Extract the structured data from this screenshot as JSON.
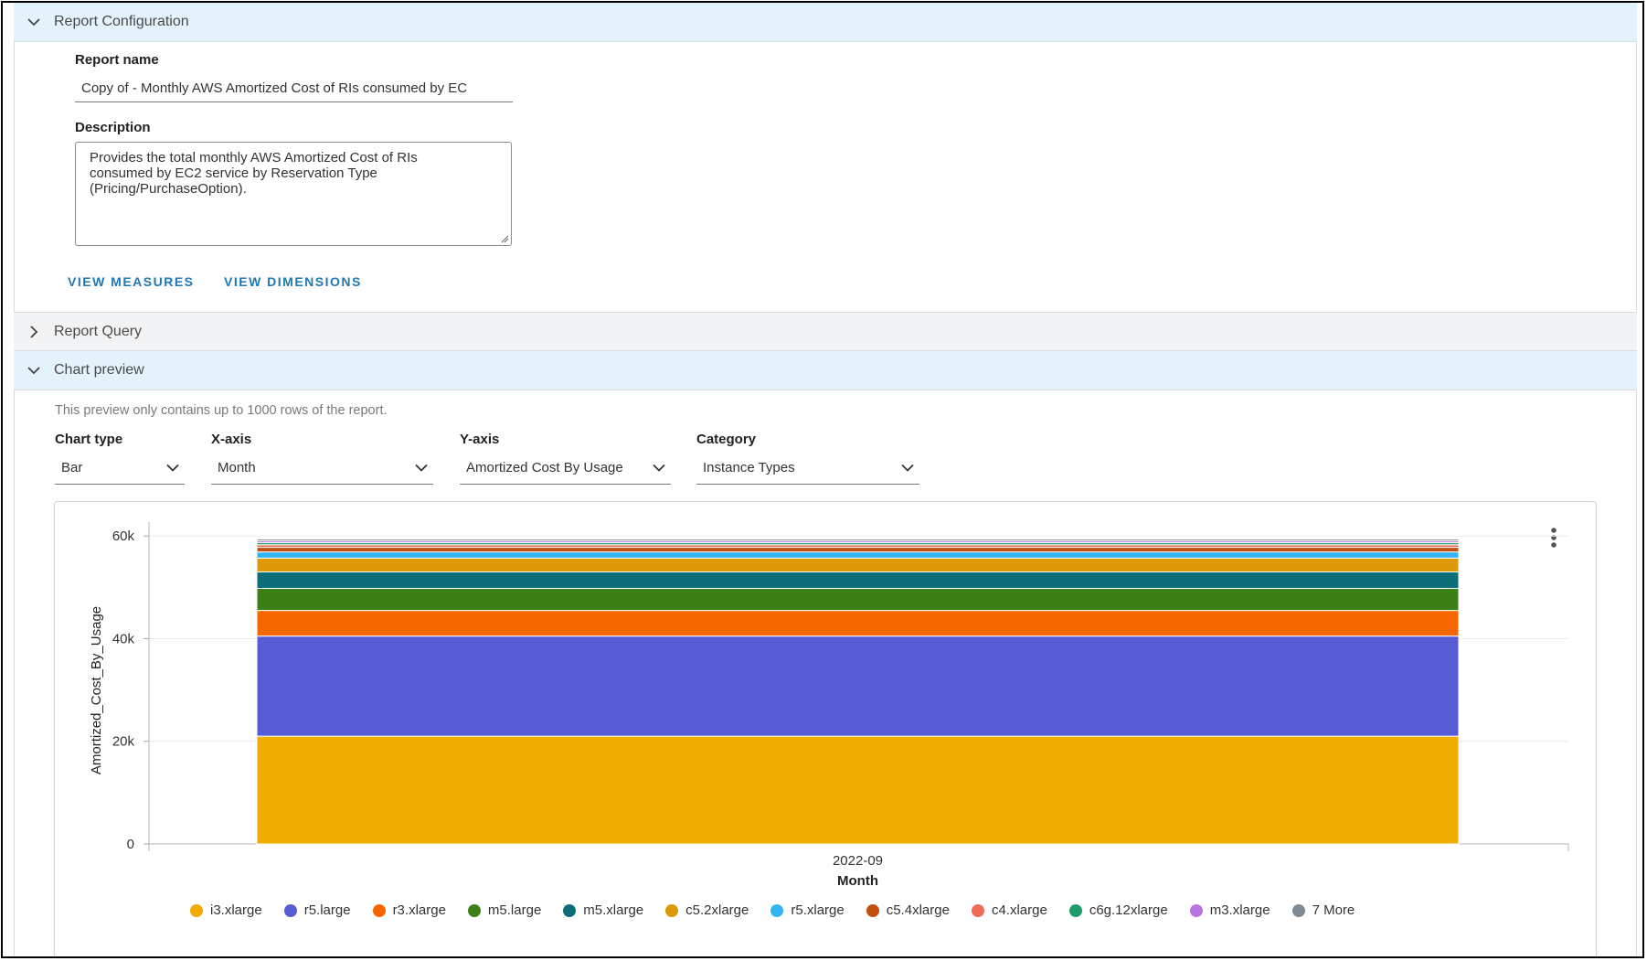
{
  "sections": {
    "report_configuration": "Report Configuration",
    "report_query": "Report Query",
    "chart_preview": "Chart preview"
  },
  "form": {
    "report_name_label": "Report name",
    "report_name_value": "Copy of - Monthly AWS Amortized Cost of RIs consumed by EC",
    "description_label": "Description",
    "description_lines": [
      "Provides the total monthly AWS Amortized Cost of RIs",
      "consumed by EC2 service by Reservation Type",
      "(Pricing/PurchaseOption)."
    ],
    "view_measures": "VIEW MEASURES",
    "view_dimensions": "VIEW DIMENSIONS"
  },
  "preview": {
    "note": "This preview only contains up to 1000 rows of the report.",
    "controls": {
      "chart_type": {
        "label": "Chart type",
        "value": "Bar"
      },
      "x_axis": {
        "label": "X-axis",
        "value": "Month"
      },
      "y_axis": {
        "label": "Y-axis",
        "value": "Amortized Cost By Usage"
      },
      "category": {
        "label": "Category",
        "value": "Instance Types"
      }
    },
    "legend_more": "7 More"
  },
  "colors": {
    "accent": "#1f78b4",
    "header_open": "#e4f3fb",
    "header_closed": "#f1f3f5"
  },
  "chart_data": {
    "type": "bar",
    "stacked": true,
    "categories": [
      "2022-09"
    ],
    "xlabel": "Month",
    "ylabel": "Amortized_Cost_By_Usage",
    "ylim": [
      0,
      62000
    ],
    "yticks": [
      0,
      20000,
      40000,
      60000
    ],
    "ytick_labels": [
      "0",
      "20k",
      "40k",
      "60k"
    ],
    "grid": true,
    "legend_position": "bottom",
    "series": [
      {
        "name": "i3.xlarge",
        "values": [
          21000
        ],
        "color": "#f0ad00"
      },
      {
        "name": "r5.large",
        "values": [
          19500
        ],
        "color": "#585bd6"
      },
      {
        "name": "r3.xlarge",
        "values": [
          5000
        ],
        "color": "#f56800"
      },
      {
        "name": "m5.large",
        "values": [
          4300
        ],
        "color": "#3d7f17"
      },
      {
        "name": "m5.xlarge",
        "values": [
          3200
        ],
        "color": "#0b6e78"
      },
      {
        "name": "c5.2xlarge",
        "values": [
          2700
        ],
        "color": "#dc9a0b"
      },
      {
        "name": "r5.xlarge",
        "values": [
          1200
        ],
        "color": "#34b5f2"
      },
      {
        "name": "c5.4xlarge",
        "values": [
          900
        ],
        "color": "#c24f0e"
      },
      {
        "name": "c4.xlarge",
        "values": [
          500
        ],
        "color": "#ef6c5a"
      },
      {
        "name": "c6g.12xlarge",
        "values": [
          400
        ],
        "color": "#1f9c6a"
      },
      {
        "name": "m3.xlarge",
        "values": [
          350
        ],
        "color": "#b874e0"
      },
      {
        "name": "7 More",
        "values": [
          350
        ],
        "color": "#7f8a93"
      }
    ]
  }
}
